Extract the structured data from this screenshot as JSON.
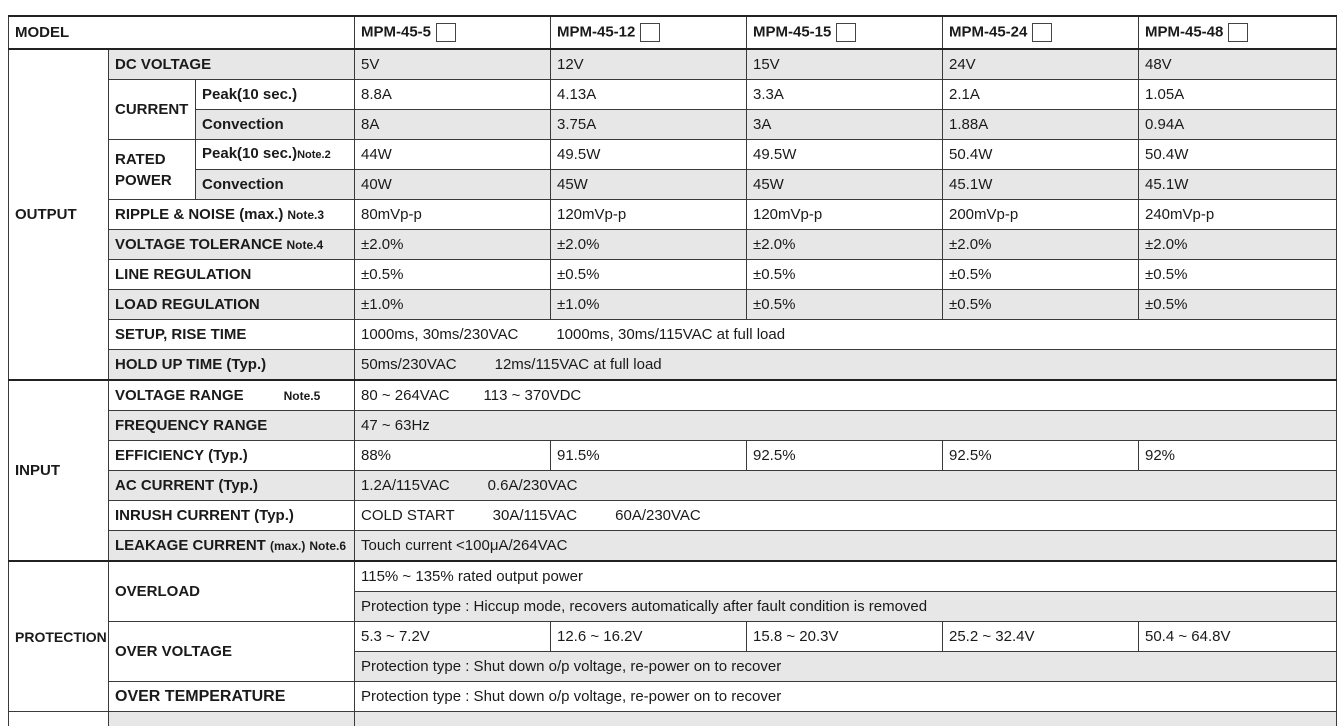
{
  "header": {
    "model_label": "MODEL",
    "models": [
      "MPM-45-5",
      "MPM-45-12",
      "MPM-45-15",
      "MPM-45-24",
      "MPM-45-48"
    ]
  },
  "output": {
    "section_label": "OUTPUT",
    "dc_voltage": {
      "label": "DC VOLTAGE",
      "values": [
        "5V",
        "12V",
        "15V",
        "24V",
        "48V"
      ]
    },
    "current": {
      "label": "CURRENT",
      "peak_label": "Peak(10 sec.)",
      "peak": [
        "8.8A",
        "4.13A",
        "3.3A",
        "2.1A",
        "1.05A"
      ],
      "conv_label": "Convection",
      "conv": [
        "8A",
        "3.75A",
        "3A",
        "1.88A",
        "0.94A"
      ]
    },
    "rated_power": {
      "label_1": "RATED",
      "label_2": "POWER",
      "peak_label": "Peak(10 sec.)",
      "peak_note": "Note.2",
      "peak": [
        "44W",
        "49.5W",
        "49.5W",
        "50.4W",
        "50.4W"
      ],
      "conv_label": "Convection",
      "conv": [
        "40W",
        "45W",
        "45W",
        "45.1W",
        "45.1W"
      ]
    },
    "ripple": {
      "label": "RIPPLE & NOISE (max.)",
      "note": "Note.3",
      "values": [
        "80mVp-p",
        "120mVp-p",
        "120mVp-p",
        "200mVp-p",
        "240mVp-p"
      ]
    },
    "voltage_tolerance": {
      "label": "VOLTAGE TOLERANCE",
      "note": "Note.4",
      "values": [
        "±2.0%",
        "±2.0%",
        "±2.0%",
        "±2.0%",
        "±2.0%"
      ]
    },
    "line_regulation": {
      "label": "LINE REGULATION",
      "values": [
        "±0.5%",
        "±0.5%",
        "±0.5%",
        "±0.5%",
        "±0.5%"
      ]
    },
    "load_regulation": {
      "label": "LOAD REGULATION",
      "values": [
        "±1.0%",
        "±1.0%",
        "±0.5%",
        "±0.5%",
        "±0.5%"
      ]
    },
    "setup": {
      "label": "SETUP, RISE TIME",
      "value_a": "1000ms, 30ms/230VAC",
      "value_b": "1000ms, 30ms/115VAC at full load"
    },
    "holdup": {
      "label": "HOLD UP TIME (Typ.)",
      "value_a": "50ms/230VAC",
      "value_b": "12ms/115VAC at full load"
    }
  },
  "input": {
    "section_label": "INPUT",
    "voltage_range": {
      "label": "VOLTAGE RANGE",
      "note": "Note.5",
      "value_a": "80 ~ 264VAC",
      "value_b": "113 ~ 370VDC"
    },
    "frequency_range": {
      "label": "FREQUENCY RANGE",
      "value": "47 ~ 63Hz"
    },
    "efficiency": {
      "label": "EFFICIENCY (Typ.)",
      "values": [
        "88%",
        "91.5%",
        "92.5%",
        "92.5%",
        "92%"
      ]
    },
    "ac_current": {
      "label": "AC CURRENT (Typ.)",
      "value_a": "1.2A/115VAC",
      "value_b": "0.6A/230VAC"
    },
    "inrush_current": {
      "label": "INRUSH CURRENT (Typ.)",
      "value_a": "COLD START",
      "value_b": "30A/115VAC",
      "value_c": "60A/230VAC"
    },
    "leakage_current": {
      "label": "LEAKAGE CURRENT",
      "label_small": "(max.)",
      "note": "Note.6",
      "value": "Touch  current <100μA/264VAC"
    }
  },
  "protection": {
    "section_label": "PROTECTION",
    "overload": {
      "label": "OVERLOAD",
      "line_1": "115% ~ 135% rated output power",
      "line_2": "Protection type : Hiccup mode, recovers automatically after fault condition is removed"
    },
    "over_voltage": {
      "label": "OVER VOLTAGE",
      "values": [
        "5.3 ~ 7.2V",
        "12.6 ~ 16.2V",
        "15.8 ~ 20.3V",
        "25.2 ~ 32.4V",
        "50.4 ~ 64.8V"
      ],
      "line_2": "Protection type : Shut down o/p voltage, re-power on to recover"
    },
    "over_temperature": {
      "label": "OVER TEMPERATURE",
      "line_1": "Protection type : Shut down o/p voltage, re-power on to recover"
    }
  }
}
